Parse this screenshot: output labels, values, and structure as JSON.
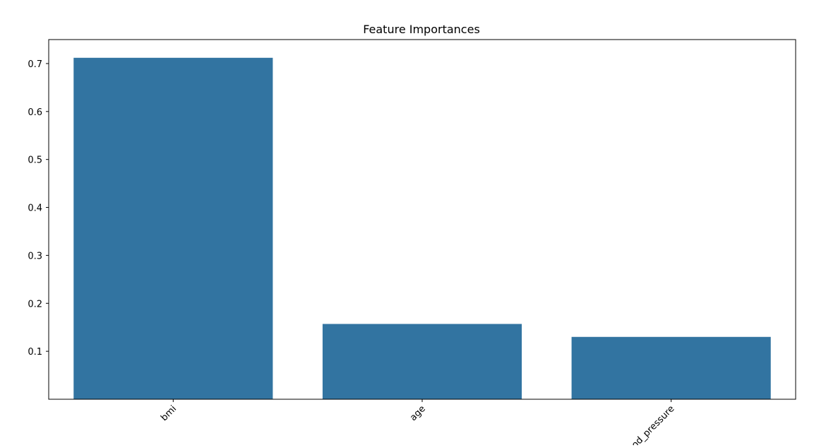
{
  "chart_data": {
    "type": "bar",
    "title": "Feature Importances",
    "xlabel": "",
    "ylabel": "",
    "categories": [
      "bmi",
      "age",
      "blood_pressure"
    ],
    "values": [
      0.712,
      0.157,
      0.13
    ],
    "ylim": [
      0.0,
      0.75
    ],
    "yticks": [
      0.1,
      0.2,
      0.3,
      0.4,
      0.5,
      0.6,
      0.7
    ],
    "ytick_labels": [
      "0.1",
      "0.2",
      "0.3",
      "0.4",
      "0.5",
      "0.6",
      "0.7"
    ],
    "grid": false,
    "legend": "none",
    "bar_color": "#3274a1",
    "x_tick_rotation": "45"
  }
}
